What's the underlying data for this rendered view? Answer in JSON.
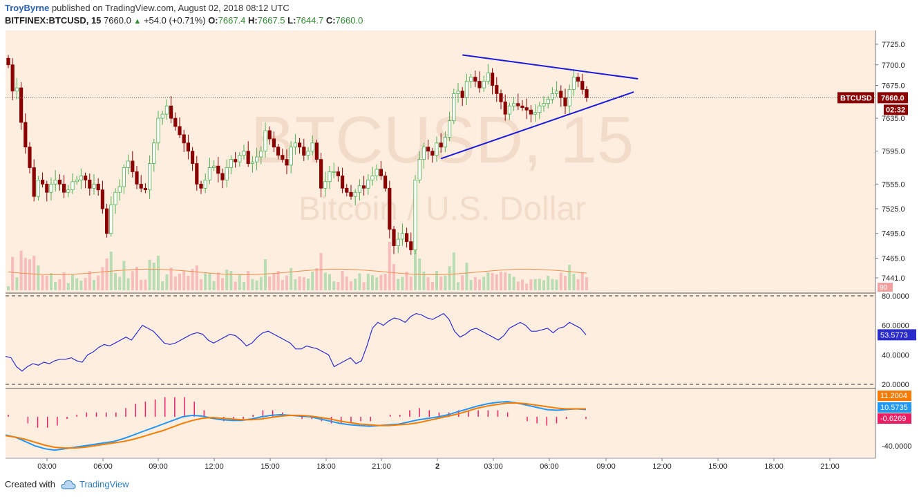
{
  "header": {
    "author": "TroyByrne",
    "published_text": "published on TradingView.com, August 02, 2018 08:12 UTC",
    "symbol": "BITFINEX:BTCUSD, 15",
    "last": "7660.0",
    "change": "+54.0 (+0.71%)",
    "o_label": "O:",
    "o_value": "7667.4",
    "h_label": "H:",
    "h_value": "7667.5",
    "l_label": "L:",
    "l_value": "7644.7",
    "c_label": "C:",
    "c_value": "7660.0"
  },
  "watermark": {
    "line1": "BTCUSD, 15",
    "line2": "Bitcoin / U.S. Dollar"
  },
  "footer": {
    "created_with": "Created with",
    "brand": "TradingView"
  },
  "colors": {
    "background": "#fdeee0",
    "up": "#4caf50",
    "down": "#8b0000",
    "trendline": "#1a1adc",
    "rsi": "#2b2bcc",
    "macd": "#2196f3",
    "signal": "#f57c00",
    "histogram": "#e91e63",
    "price_label": "#8b0000"
  },
  "chart_data": {
    "type": "candlestick",
    "symbol": "BTCUSD",
    "timeframe": "15",
    "price_axis_ticks": [
      7725.0,
      7700.0,
      7675.0,
      7635.0,
      7595.0,
      7555.0,
      7525.0,
      7495.0,
      7465.0,
      7441.0
    ],
    "price_axis_labels": [
      "7725.0",
      "7700.0",
      "7675.0",
      "7635.0",
      "7595.0",
      "7555.0",
      "7525.0",
      "7495.0",
      "7465.0",
      "7441.0"
    ],
    "time_axis_labels": [
      "03:00",
      "06:00",
      "09:00",
      "12:00",
      "15:00",
      "18:00",
      "21:00",
      "2",
      "03:00",
      "06:00",
      "09:00",
      "12:00",
      "15:00",
      "18:00",
      "21:00"
    ],
    "current_price_label": "7660.0",
    "symbol_label": "BTCUSD",
    "countdown_label": "02:32",
    "volume_label": "90",
    "candles_close": [
      7700,
      7668,
      7672,
      7630,
      7600,
      7575,
      7540,
      7560,
      7555,
      7545,
      7555,
      7560,
      7555,
      7545,
      7548,
      7558,
      7560,
      7565,
      7560,
      7550,
      7555,
      7548,
      7525,
      7495,
      7530,
      7545,
      7552,
      7575,
      7583,
      7570,
      7555,
      7550,
      7548,
      7580,
      7605,
      7635,
      7640,
      7650,
      7635,
      7625,
      7615,
      7605,
      7595,
      7580,
      7555,
      7550,
      7560,
      7575,
      7577,
      7568,
      7560,
      7575,
      7585,
      7582,
      7590,
      7595,
      7580,
      7582,
      7588,
      7595,
      7620,
      7610,
      7600,
      7590,
      7585,
      7578,
      7600,
      7605,
      7600,
      7590,
      7595,
      7605,
      7585,
      7550,
      7558,
      7570,
      7570,
      7565,
      7550,
      7545,
      7540,
      7545,
      7553,
      7550,
      7560,
      7565,
      7573,
      7565,
      7550,
      7500,
      7480,
      7488,
      7495,
      7485,
      7475,
      7560,
      7585,
      7600,
      7595,
      7590,
      7605,
      7600,
      7612,
      7632,
      7665,
      7668,
      7660,
      7680,
      7685,
      7680,
      7672,
      7680,
      7690,
      7675,
      7665,
      7655,
      7640,
      7650,
      7653,
      7650,
      7648,
      7645,
      7640,
      7642,
      7650,
      7653,
      7658,
      7665,
      7668,
      7660,
      7650,
      7670,
      7685,
      7680,
      7670,
      7660
    ],
    "volume_avg_approx": 14,
    "trendlines": [
      {
        "name": "upper",
        "from": [
          106,
          7712
        ],
        "to": [
          147,
          7683
        ]
      },
      {
        "name": "lower",
        "from": [
          101,
          7586
        ],
        "to": [
          146,
          7667
        ]
      }
    ],
    "rsi": {
      "axis_labels": [
        "80.0000",
        "60.0000",
        "40.0000",
        "20.0000"
      ],
      "levels": [
        80,
        20
      ],
      "last_value_label": "53.5773",
      "values": [
        39,
        38,
        32,
        29,
        32,
        34,
        33,
        35,
        34,
        36,
        37,
        37,
        38,
        36,
        35,
        40,
        42,
        45,
        47,
        46,
        48,
        50,
        52,
        50,
        55,
        60,
        58,
        56,
        52,
        48,
        47,
        48,
        50,
        52,
        54,
        55,
        54,
        50,
        48,
        50,
        52,
        54,
        53,
        50,
        46,
        48,
        52,
        55,
        56,
        54,
        52,
        50,
        48,
        44,
        44,
        46,
        45,
        44,
        42,
        40,
        32,
        34,
        36,
        38,
        34,
        36,
        46,
        58,
        62,
        60,
        63,
        65,
        64,
        62,
        66,
        68,
        67,
        65,
        64,
        66,
        68,
        64,
        56,
        52,
        54,
        57,
        58,
        56,
        54,
        52,
        50,
        53,
        58,
        60,
        62,
        60,
        56,
        56,
        57,
        58,
        55,
        58,
        59,
        62,
        60,
        58,
        53.5773
      ]
    },
    "macd": {
      "axis_labels": [
        "-40.0000"
      ],
      "value_labels": [
        "11.2004",
        "10.5735",
        "-0.6269"
      ],
      "macd_values": [
        -25,
        -28,
        -34,
        -40,
        -44,
        -46,
        -44,
        -42,
        -40,
        -38,
        -36,
        -34,
        -30,
        -25,
        -20,
        -15,
        -10,
        -5,
        0,
        2,
        1,
        -2,
        -4,
        -5,
        -5,
        -3,
        0,
        2,
        3,
        2,
        1,
        0,
        -3,
        -6,
        -9,
        -11,
        -12,
        -13,
        -12,
        -11,
        -10,
        -7,
        -4,
        -2,
        0,
        3,
        7,
        11,
        15,
        18,
        20,
        21,
        19,
        16,
        13,
        10,
        9,
        10,
        11,
        10
      ],
      "signal_values": [
        -26,
        -28,
        -31,
        -35,
        -39,
        -42,
        -43,
        -43,
        -42,
        -40,
        -38,
        -36,
        -34,
        -31,
        -27,
        -23,
        -19,
        -14,
        -9,
        -5,
        -2,
        -1,
        -2,
        -3,
        -4,
        -4,
        -3,
        -1,
        1,
        2,
        2,
        1,
        -1,
        -3,
        -6,
        -8,
        -10,
        -11,
        -12,
        -12,
        -11,
        -10,
        -8,
        -5,
        -2,
        1,
        4,
        8,
        12,
        15,
        17,
        19,
        19,
        18,
        16,
        14,
        12,
        11,
        11,
        11
      ]
    }
  }
}
